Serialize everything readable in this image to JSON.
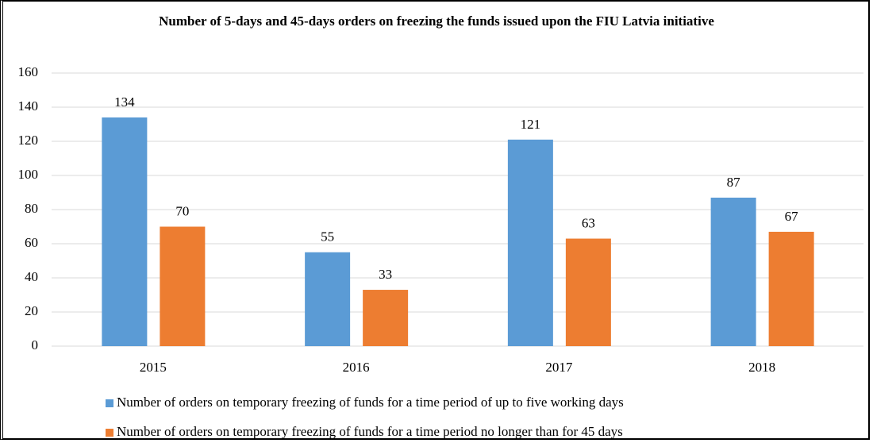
{
  "chart_data": {
    "type": "bar",
    "title": "Number of 5-days and 45-days orders on freezing the funds issued upon the FIU Latvia initiative",
    "categories": [
      "2015",
      "2016",
      "2017",
      "2018"
    ],
    "series": [
      {
        "name": "Number of orders on temporary freezing of funds for a time period of up to five working days",
        "color": "#5b9bd5",
        "values": [
          134,
          55,
          121,
          87
        ]
      },
      {
        "name": "Number of orders on temporary freezing of funds for a time period no longer than for 45 days",
        "color": "#ed7d31",
        "values": [
          70,
          33,
          63,
          67
        ]
      }
    ],
    "ylim": [
      0,
      160
    ],
    "yticks": [
      0,
      20,
      40,
      60,
      80,
      100,
      120,
      140,
      160
    ],
    "grid": true,
    "legend": "bottom"
  }
}
